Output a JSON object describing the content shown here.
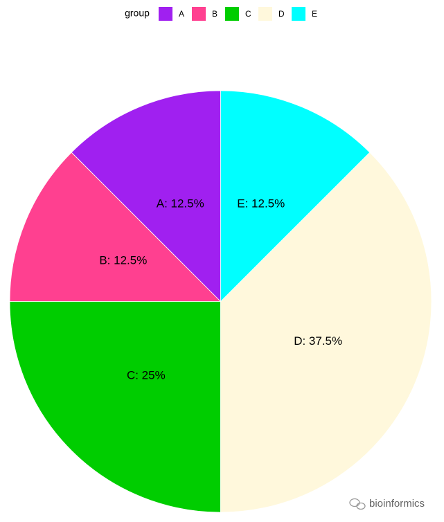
{
  "chart_data": {
    "type": "pie",
    "legend_title": "group",
    "categories": [
      "A",
      "B",
      "C",
      "D",
      "E"
    ],
    "values": [
      12.5,
      12.5,
      25,
      37.5,
      12.5
    ],
    "value_labels": [
      "A: 12.5%",
      "B: 12.5%",
      "C: 25%",
      "D: 37.5%",
      "E: 12.5%"
    ],
    "colors": [
      "#a020f0",
      "#ff4090",
      "#00cd00",
      "#fff8dc",
      "#00ffff"
    ],
    "legend": "top",
    "direction": "counterclockwise"
  },
  "watermark": "bioinformics"
}
